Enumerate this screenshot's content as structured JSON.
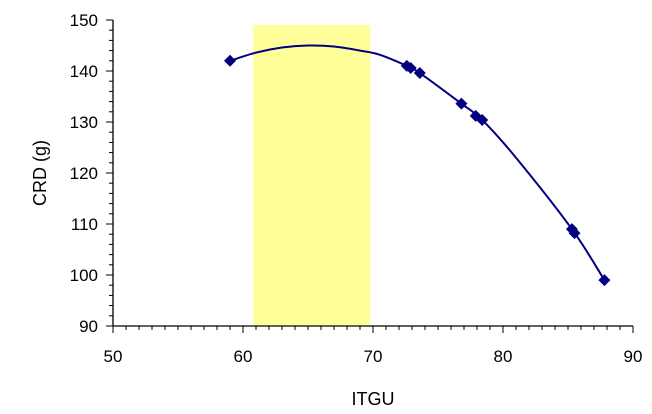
{
  "chart_data": {
    "type": "line",
    "title": "",
    "xlabel": "ITGU",
    "ylabel": "CRD (g)",
    "xlim": [
      50,
      90
    ],
    "ylim": [
      90,
      150
    ],
    "x_ticks": [
      "50",
      "60",
      "70",
      "80",
      "90"
    ],
    "y_ticks": [
      "90",
      "100",
      "110",
      "120",
      "130",
      "140",
      "150"
    ],
    "x_minor_step": 1,
    "y_minor_step": 2,
    "grid": false,
    "highlight_band": {
      "x_range": [
        60.8,
        69.8
      ],
      "y_range": [
        90,
        149
      ],
      "color": "#ffff99"
    },
    "series": [
      {
        "color": "#000080",
        "marker": "diamond",
        "x": [
          59.0,
          72.6,
          72.9,
          73.6,
          76.8,
          77.9,
          78.4,
          85.3,
          85.5,
          87.8
        ],
        "y": [
          142.0,
          141.0,
          140.6,
          139.6,
          133.6,
          131.2,
          130.4,
          109.0,
          108.2,
          99.0
        ]
      }
    ],
    "curve": {
      "x": [
        59.0,
        61.0,
        63.0,
        65.0,
        67.0,
        69.0,
        70.5,
        72.6,
        73.6,
        76.8,
        78.4,
        81.0,
        85.3,
        87.8
      ],
      "y": [
        142.0,
        143.6,
        144.6,
        145.0,
        144.8,
        144.0,
        143.2,
        141.0,
        139.6,
        133.6,
        130.4,
        123.0,
        109.0,
        99.0
      ]
    }
  }
}
